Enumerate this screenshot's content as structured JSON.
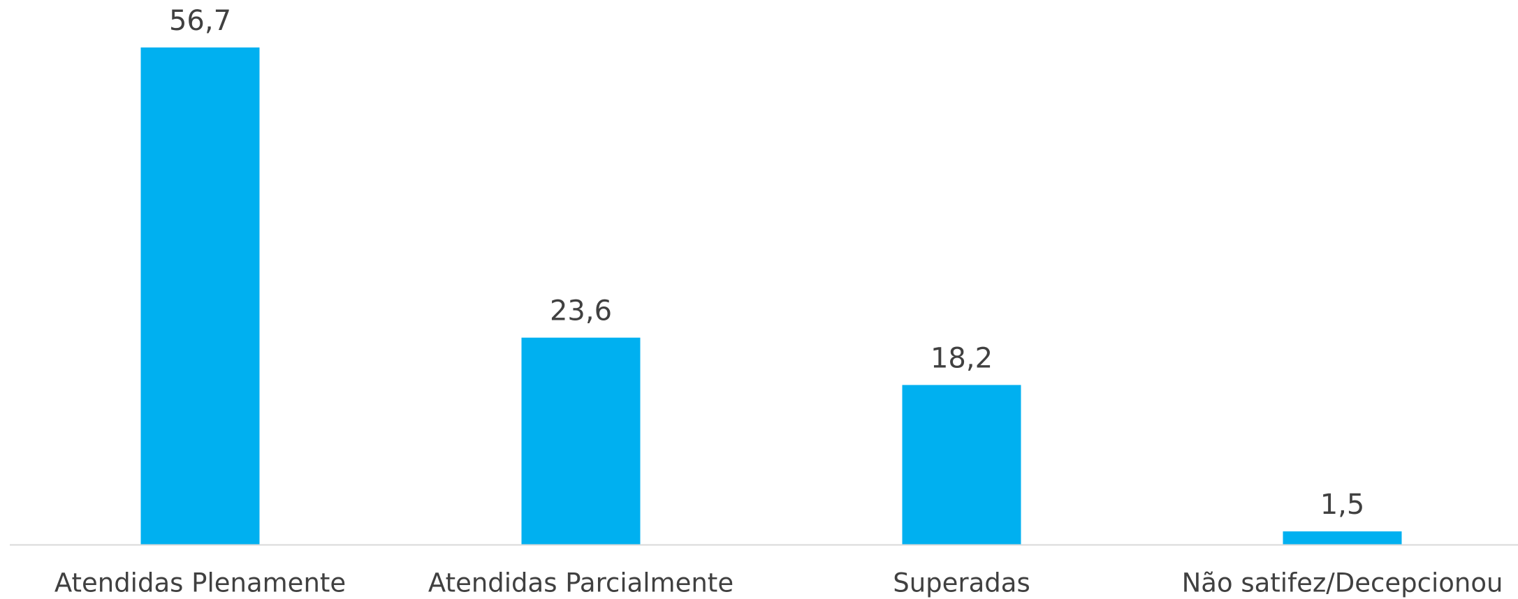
{
  "chart_data": {
    "type": "bar",
    "categories": [
      "Atendidas Plenamente",
      "Atendidas Parcialmente",
      "Superadas",
      "Não satifez/Decepcionou"
    ],
    "values": [
      56.7,
      23.6,
      18.2,
      1.5
    ],
    "value_labels": [
      "56,7",
      "23,6",
      "18,2",
      "1,5"
    ],
    "color": "#00b0f0"
  }
}
